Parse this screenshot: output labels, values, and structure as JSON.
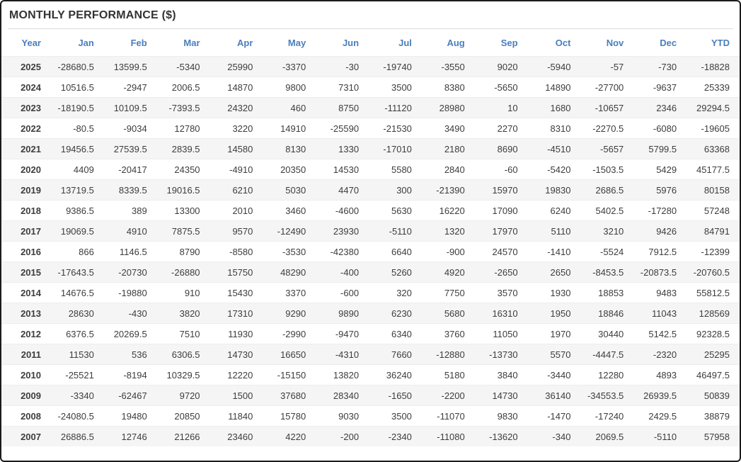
{
  "colors": {
    "accent_blue": "#4a7ebc",
    "negative_red": "#fb5d5d",
    "positive_text": "#3d3d3d",
    "stripe_gray": "#f5f5f5",
    "title_text": "#333333",
    "panel_border": "#1b1b1b"
  },
  "chart_data": {
    "type": "table",
    "title": "MONTHLY PERFORMANCE ($)",
    "columns": [
      "Year",
      "Jan",
      "Feb",
      "Mar",
      "Apr",
      "May",
      "Jun",
      "Jul",
      "Aug",
      "Sep",
      "Oct",
      "Nov",
      "Dec",
      "YTD"
    ],
    "rows": [
      {
        "year": "2025",
        "values": [
          -28680.5,
          13599.5,
          -5340,
          25990,
          -3370,
          -30,
          -19740,
          -3550,
          9020,
          -5940,
          -57,
          -730,
          -18828
        ]
      },
      {
        "year": "2024",
        "values": [
          10516.5,
          -2947,
          2006.5,
          14870,
          9800,
          7310,
          3500,
          8380,
          -5650,
          14890,
          -27700,
          -9637,
          25339
        ]
      },
      {
        "year": "2023",
        "values": [
          -18190.5,
          10109.5,
          -7393.5,
          24320,
          460,
          8750,
          -11120,
          28980,
          10,
          1680,
          -10657,
          2346,
          29294.5
        ]
      },
      {
        "year": "2022",
        "values": [
          -80.5,
          -9034,
          12780,
          3220,
          14910,
          -25590,
          -21530,
          3490,
          2270,
          8310,
          -2270.5,
          -6080,
          -19605
        ]
      },
      {
        "year": "2021",
        "values": [
          19456.5,
          27539.5,
          2839.5,
          14580,
          8130,
          1330,
          -17010,
          2180,
          8690,
          -4510,
          -5657,
          5799.5,
          63368
        ]
      },
      {
        "year": "2020",
        "values": [
          4409,
          -20417,
          24350,
          -4910,
          20350,
          14530,
          5580,
          2840,
          -60,
          -5420,
          -1503.5,
          5429,
          45177.5
        ]
      },
      {
        "year": "2019",
        "values": [
          13719.5,
          8339.5,
          19016.5,
          6210,
          5030,
          4470,
          300,
          -21390,
          15970,
          19830,
          2686.5,
          5976,
          80158
        ]
      },
      {
        "year": "2018",
        "values": [
          9386.5,
          389,
          13300,
          2010,
          3460,
          -4600,
          5630,
          16220,
          17090,
          6240,
          5402.5,
          -17280,
          57248
        ]
      },
      {
        "year": "2017",
        "values": [
          19069.5,
          4910,
          7875.5,
          9570,
          -12490,
          23930,
          -5110,
          1320,
          17970,
          5110,
          3210,
          9426,
          84791
        ]
      },
      {
        "year": "2016",
        "values": [
          866,
          1146.5,
          8790,
          -8580,
          -3530,
          -42380,
          6640,
          -900,
          24570,
          -1410,
          -5524,
          7912.5,
          -12399
        ]
      },
      {
        "year": "2015",
        "values": [
          -17643.5,
          -20730,
          -26880,
          15750,
          48290,
          -400,
          5260,
          4920,
          -2650,
          2650,
          -8453.5,
          -20873.5,
          -20760.5
        ]
      },
      {
        "year": "2014",
        "values": [
          14676.5,
          -19880,
          910,
          15430,
          3370,
          -600,
          320,
          7750,
          3570,
          1930,
          18853,
          9483,
          55812.5
        ]
      },
      {
        "year": "2013",
        "values": [
          28630,
          -430,
          3820,
          17310,
          9290,
          9890,
          6230,
          5680,
          16310,
          1950,
          18846,
          11043,
          128569
        ]
      },
      {
        "year": "2012",
        "values": [
          6376.5,
          20269.5,
          7510,
          11930,
          -2990,
          -9470,
          6340,
          3760,
          11050,
          1970,
          30440,
          5142.5,
          92328.5
        ]
      },
      {
        "year": "2011",
        "values": [
          11530,
          536,
          6306.5,
          14730,
          16650,
          -4310,
          7660,
          -12880,
          -13730,
          5570,
          -4447.5,
          -2320,
          25295
        ]
      },
      {
        "year": "2010",
        "values": [
          -25521,
          -8194,
          10329.5,
          12220,
          -15150,
          13820,
          36240,
          5180,
          3840,
          -3440,
          12280,
          4893,
          46497.5
        ]
      },
      {
        "year": "2009",
        "values": [
          -3340,
          -62467,
          9720,
          1500,
          37680,
          28340,
          -1650,
          -2200,
          14730,
          36140,
          -34553.5,
          26939.5,
          50839
        ]
      },
      {
        "year": "2008",
        "values": [
          -24080.5,
          19480,
          20850,
          11840,
          15780,
          9030,
          3500,
          -11070,
          9830,
          -1470,
          -17240,
          2429.5,
          38879
        ]
      },
      {
        "year": "2007",
        "values": [
          26886.5,
          12746,
          21266,
          23460,
          4220,
          -200,
          -2340,
          -11080,
          -13620,
          -340,
          2069.5,
          -5110,
          57958
        ]
      }
    ]
  }
}
